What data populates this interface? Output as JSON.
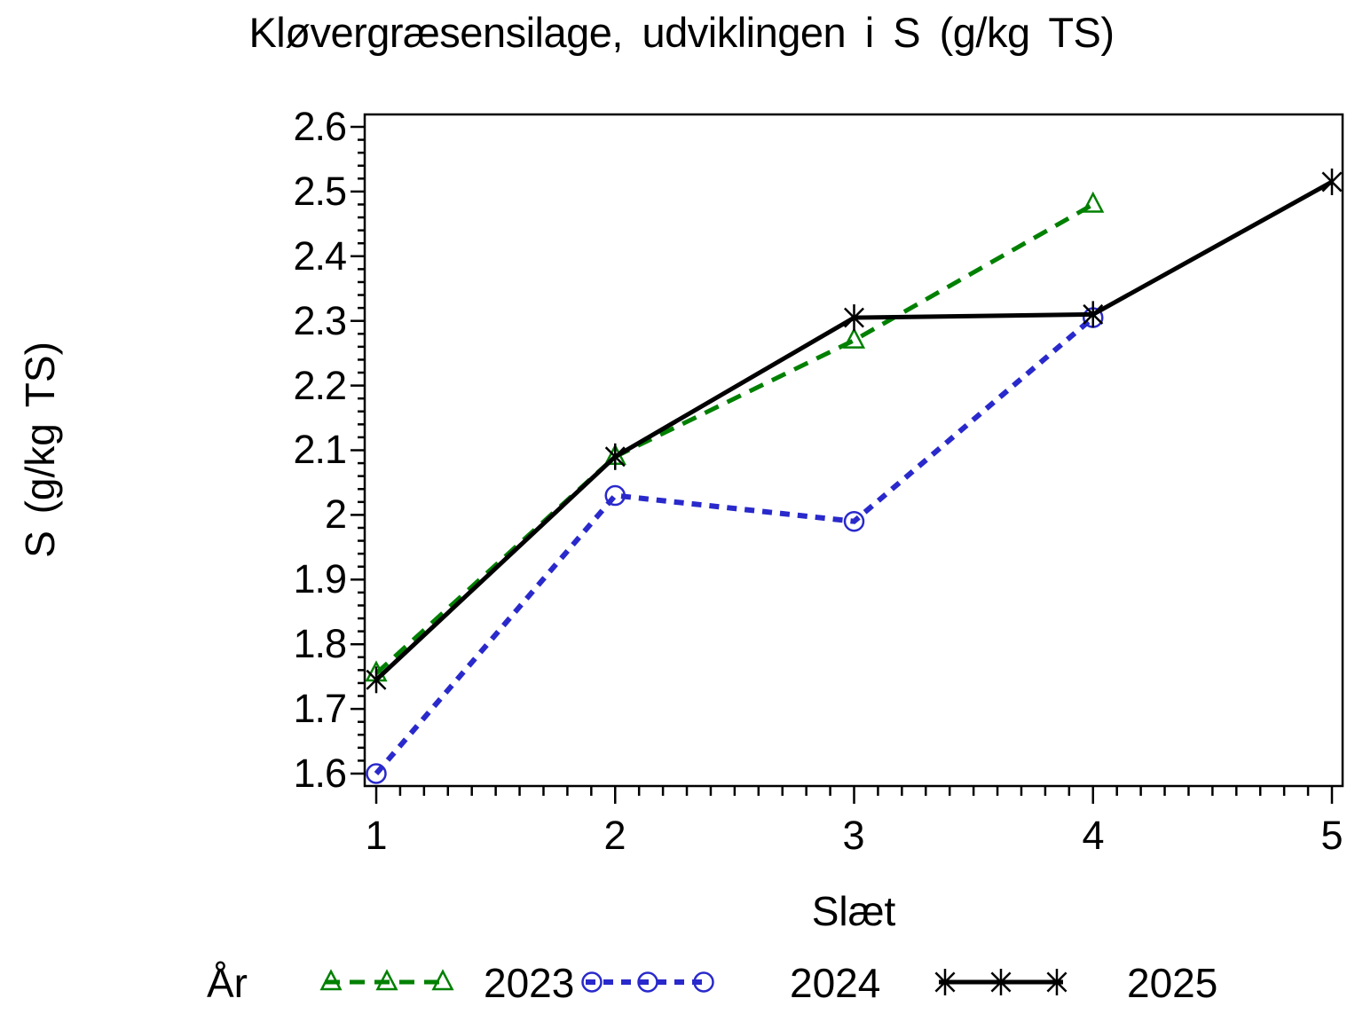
{
  "chart_data": {
    "type": "line",
    "title": "Kløvergræsensilage, udviklingen i S (g/kg TS)",
    "xlabel": "Slæt",
    "ylabel": "S (g/kg TS)",
    "x_tick_labels": [
      "1",
      "2",
      "3",
      "4",
      "5"
    ],
    "y_tick_labels": [
      "2.6",
      "2.5",
      "2.4",
      "2.3",
      "2.2",
      "2.1",
      "2",
      "1.9",
      "1.8",
      "1.7",
      "1.6"
    ],
    "xlim": [
      0.95,
      5.05
    ],
    "ylim": [
      1.578,
      2.62
    ],
    "x_major_step": 1,
    "x_minor_step": 0.1,
    "y_major_step": 0.1,
    "y_minor_step": 0.02,
    "grid": false,
    "frame": true,
    "legend": {
      "label": "År",
      "position": "bottom",
      "entries": [
        "2023",
        "2024",
        "2025"
      ]
    },
    "series": [
      {
        "name": "2023",
        "color": "#008000",
        "line_style": "dashed",
        "dash": [
          17,
          11
        ],
        "stroke_width": 5,
        "marker": "triangle",
        "x": [
          1,
          2,
          3,
          4
        ],
        "values": [
          1.755,
          2.09,
          2.27,
          2.48
        ]
      },
      {
        "name": "2024",
        "color": "#2929cc",
        "line_style": "dashed",
        "dash": [
          11,
          9
        ],
        "stroke_width": 6,
        "marker": "circle",
        "x": [
          1,
          2,
          3,
          4
        ],
        "values": [
          1.6,
          2.03,
          1.99,
          2.305
        ]
      },
      {
        "name": "2025",
        "color": "#000000",
        "line_style": "solid",
        "dash": null,
        "stroke_width": 5,
        "marker": "asterisk",
        "x": [
          1,
          2,
          3,
          4,
          5
        ],
        "values": [
          1.745,
          2.09,
          2.305,
          2.31,
          2.515
        ]
      }
    ]
  }
}
